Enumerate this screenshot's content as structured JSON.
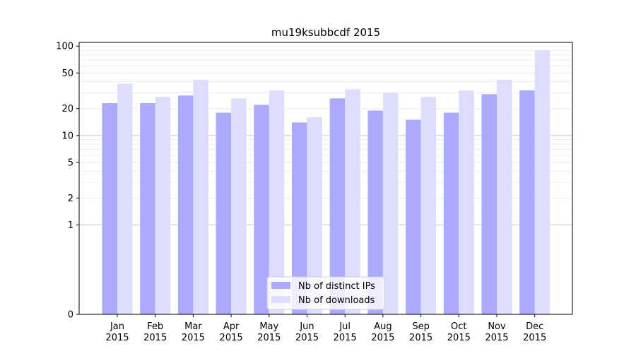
{
  "chart_data": {
    "type": "bar",
    "title": "mu19ksubbcdf 2015",
    "xlabel": "",
    "ylabel": "",
    "yscale": "symlog",
    "ylim": [
      0,
      110
    ],
    "yticks": [
      0,
      1,
      2,
      5,
      10,
      20,
      50,
      100
    ],
    "grid": true,
    "legend_position": "lower-center",
    "categories": [
      [
        "Jan",
        "2015"
      ],
      [
        "Feb",
        "2015"
      ],
      [
        "Mar",
        "2015"
      ],
      [
        "Apr",
        "2015"
      ],
      [
        "May",
        "2015"
      ],
      [
        "Jun",
        "2015"
      ],
      [
        "Jul",
        "2015"
      ],
      [
        "Aug",
        "2015"
      ],
      [
        "Sep",
        "2015"
      ],
      [
        "Oct",
        "2015"
      ],
      [
        "Nov",
        "2015"
      ],
      [
        "Dec",
        "2015"
      ]
    ],
    "series": [
      {
        "name": "Nb of distinct IPs",
        "color": "#aaaaff",
        "values": [
          23,
          23,
          28,
          18,
          22,
          14,
          26,
          19,
          15,
          18,
          29,
          32
        ]
      },
      {
        "name": "Nb of downloads",
        "color": "#ddddff",
        "values": [
          38,
          27,
          42,
          26,
          32,
          16,
          33,
          30,
          27,
          32,
          42,
          90
        ]
      }
    ]
  }
}
